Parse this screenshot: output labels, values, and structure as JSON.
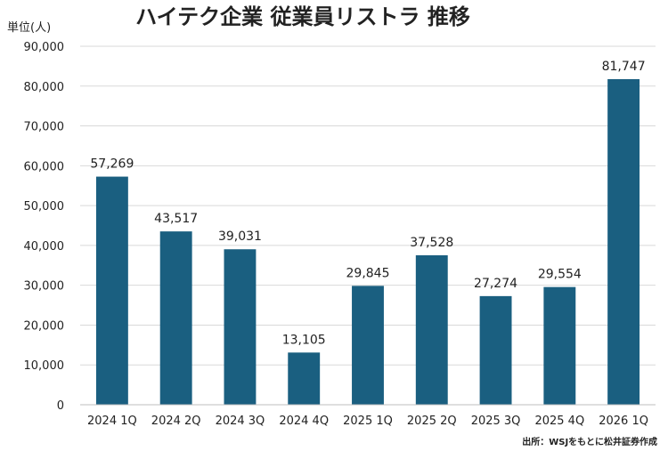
{
  "chart_data": {
    "type": "bar",
    "title": "ハイテク企業 従業員リストラ 推移",
    "ylabel": "単位(人)",
    "xlabel": "",
    "categories": [
      "2024 1Q",
      "2024 2Q",
      "2024 3Q",
      "2024 4Q",
      "2025 1Q",
      "2025 2Q",
      "2025 3Q",
      "2025 4Q",
      "2026 1Q"
    ],
    "values": [
      57269,
      43517,
      39031,
      13105,
      29845,
      37528,
      27274,
      29554,
      81747
    ],
    "value_labels": [
      "57,269",
      "43,517",
      "39,031",
      "13,105",
      "29,845",
      "37,528",
      "27,274",
      "29,554",
      "81,747"
    ],
    "ylim": [
      0,
      90000
    ],
    "yticks": [
      0,
      10000,
      20000,
      30000,
      40000,
      50000,
      60000,
      70000,
      80000,
      90000
    ],
    "ytick_labels": [
      "0",
      "10,000",
      "20,000",
      "30,000",
      "40,000",
      "50,000",
      "60,000",
      "70,000",
      "80,000",
      "90,000"
    ],
    "grid": true,
    "bar_color": "#1a5f80",
    "source": "出所：WSJをもとに松井証券作成"
  }
}
